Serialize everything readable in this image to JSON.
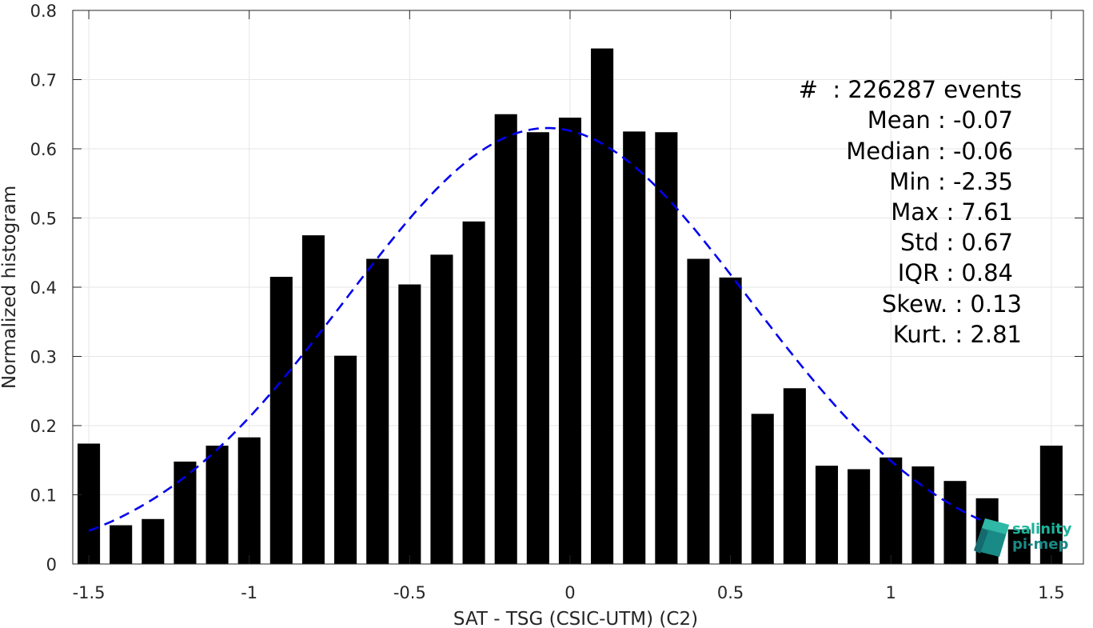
{
  "chart_data": {
    "type": "bar",
    "xlabel": "SAT - TSG (CSIC-UTM) (C2)",
    "ylabel": "Normalized histogram",
    "xlim": [
      -1.55,
      1.6
    ],
    "ylim": [
      0,
      0.8
    ],
    "grid": true,
    "x_ticks": [
      "-1.5",
      "-1",
      "-0.5",
      "0",
      "0.5",
      "1",
      "1.5"
    ],
    "y_ticks": [
      "0",
      "0.1",
      "0.2",
      "0.3",
      "0.4",
      "0.5",
      "0.6",
      "0.7",
      "0.8"
    ],
    "bar_width": 0.07,
    "bars": [
      {
        "x": -1.5,
        "y": 0.174
      },
      {
        "x": -1.4,
        "y": 0.056
      },
      {
        "x": -1.3,
        "y": 0.065
      },
      {
        "x": -1.2,
        "y": 0.148
      },
      {
        "x": -1.1,
        "y": 0.171
      },
      {
        "x": -1.0,
        "y": 0.183
      },
      {
        "x": -0.9,
        "y": 0.415
      },
      {
        "x": -0.8,
        "y": 0.475
      },
      {
        "x": -0.7,
        "y": 0.301
      },
      {
        "x": -0.6,
        "y": 0.441
      },
      {
        "x": -0.5,
        "y": 0.404
      },
      {
        "x": -0.4,
        "y": 0.447
      },
      {
        "x": -0.3,
        "y": 0.495
      },
      {
        "x": -0.2,
        "y": 0.65
      },
      {
        "x": -0.1,
        "y": 0.624
      },
      {
        "x": 0.0,
        "y": 0.645
      },
      {
        "x": 0.1,
        "y": 0.745
      },
      {
        "x": 0.2,
        "y": 0.625
      },
      {
        "x": 0.3,
        "y": 0.624
      },
      {
        "x": 0.4,
        "y": 0.441
      },
      {
        "x": 0.5,
        "y": 0.414
      },
      {
        "x": 0.6,
        "y": 0.217
      },
      {
        "x": 0.7,
        "y": 0.254
      },
      {
        "x": 0.8,
        "y": 0.142
      },
      {
        "x": 0.9,
        "y": 0.137
      },
      {
        "x": 1.0,
        "y": 0.154
      },
      {
        "x": 1.1,
        "y": 0.141
      },
      {
        "x": 1.2,
        "y": 0.12
      },
      {
        "x": 1.3,
        "y": 0.095
      },
      {
        "x": 1.4,
        "y": 0.05
      },
      {
        "x": 1.5,
        "y": 0.171
      }
    ],
    "fit_curve": {
      "style": "dashed",
      "color": "#0000ee",
      "mean": -0.07,
      "std": 0.63,
      "peak": 0.63,
      "x_range": [
        -1.5,
        1.35
      ]
    },
    "bar_color": "#000000"
  },
  "stats": {
    "events": "#  : 226287 events",
    "mean": "Mean : -0.07",
    "median": "Median : -0.06",
    "min": "Min : -2.35",
    "max": "Max : 7.61",
    "std": "Std : 0.67",
    "iqr": "IQR : 0.84",
    "skew": "Skew. : 0.13",
    "kurt": "Kurt. : 2.81"
  },
  "logo": {
    "line1": "salinity",
    "line2": "pi-mep",
    "color": "#1bb49a"
  }
}
